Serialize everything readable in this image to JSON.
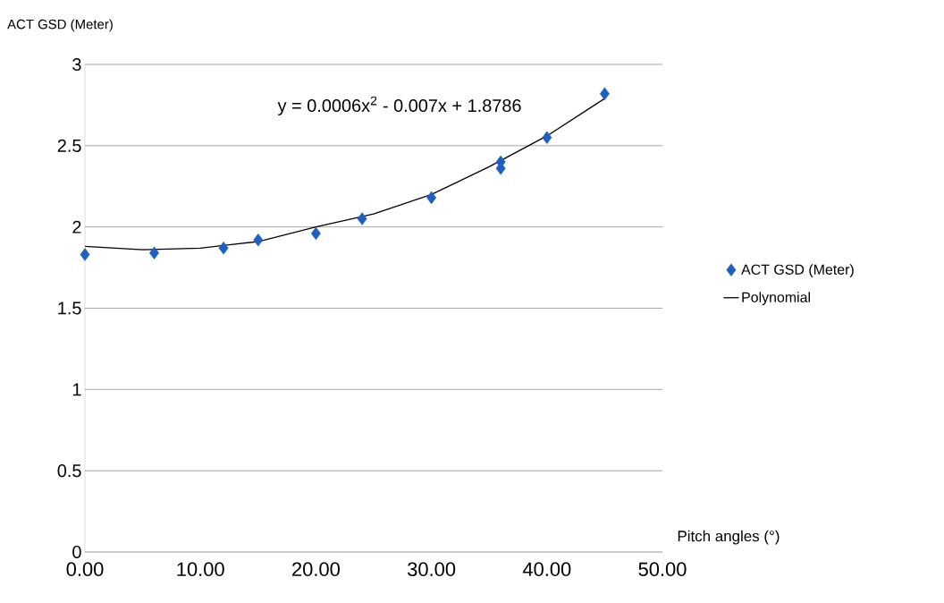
{
  "chart_data": {
    "type": "scatter",
    "xlabel": "Pitch angles (°)",
    "ylabel": "ACT GSD (Meter)",
    "x": [
      0,
      6,
      12,
      15,
      20,
      24,
      30,
      36,
      36,
      40,
      45
    ],
    "series": [
      {
        "name": "ACT GSD (Meter)",
        "color": "#1f5fbf",
        "values": [
          1.83,
          1.84,
          1.87,
          1.92,
          1.96,
          2.05,
          2.18,
          2.4,
          2.36,
          2.55,
          2.82
        ],
        "marker": "diamond"
      },
      {
        "name": "Polynomial",
        "type": "line",
        "color": "#000000",
        "x": [
          0,
          5,
          10,
          15,
          20,
          25,
          30,
          35,
          40,
          45
        ],
        "values": [
          1.88,
          1.86,
          1.87,
          1.91,
          2.0,
          2.08,
          2.2,
          2.37,
          2.56,
          2.79
        ],
        "marker": "none",
        "line_style": "solid"
      }
    ],
    "xlim": [
      0,
      50
    ],
    "xticks": [
      {
        "value": 0,
        "label": "0.00"
      },
      {
        "value": 10,
        "label": "10.00"
      },
      {
        "value": 20,
        "label": "20.00"
      },
      {
        "value": 30,
        "label": "30.00"
      },
      {
        "value": 40,
        "label": "40.00"
      },
      {
        "value": 50,
        "label": "50.00"
      }
    ],
    "ylim": [
      0,
      3
    ],
    "yticks": [
      0,
      0.5,
      1,
      1.5,
      2,
      2.5,
      3
    ],
    "grid": "y",
    "legend": "right",
    "annotations": [
      "y = 0.0006x$^{2}$ - 0.007x + 1.8786"
    ]
  }
}
